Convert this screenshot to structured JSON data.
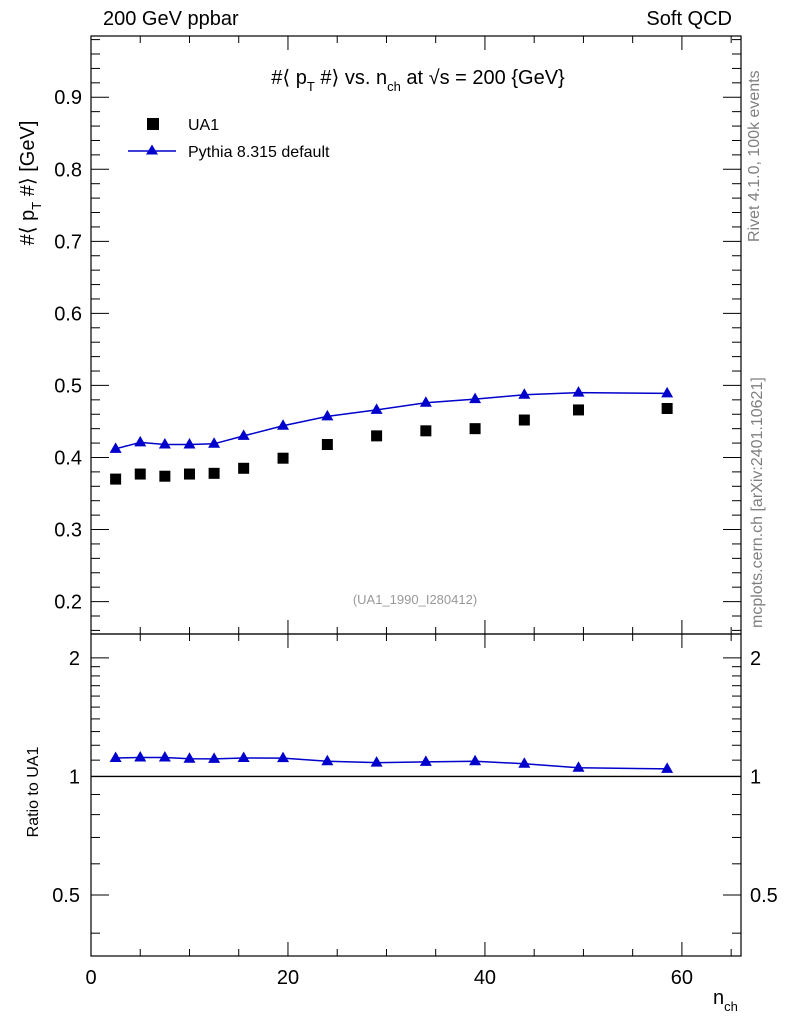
{
  "header": {
    "left": "200 GeV ppbar",
    "right": "Soft QCD"
  },
  "side_labels": {
    "rivet": "Rivet 4.1.0,  100k events",
    "mcplots": "mcplots.cern.ch [arXiv:2401.10621]"
  },
  "chart_data": {
    "type": "scatter",
    "title": "#⟨ p_T #⟩ vs. n_ch at √s = 200 {GeV}",
    "title_parts": {
      "pre": "#⟨ p",
      "sub1": "T",
      "mid": " #⟩ vs. n",
      "sub2": "ch",
      "post": " at √s = 200 {GeV}"
    },
    "ylabel_parts": {
      "pre": "#⟨ p",
      "sub": "T",
      "post": " #⟩ [GeV]"
    },
    "xlabel_parts": {
      "pre": "n",
      "sub": "ch"
    },
    "ratio_ylabel": "Ratio to UA1",
    "watermark": "(UA1_1990_I280412)",
    "xlim": [
      0,
      66
    ],
    "ylim": [
      0.155,
      0.985
    ],
    "ratio_ylim": [
      0.35,
      2.3
    ],
    "x_ticks": [
      "0",
      "20",
      "40",
      "60"
    ],
    "x_tick_values": [
      0,
      20,
      40,
      60
    ],
    "y_ticks": [
      "0.2",
      "0.3",
      "0.4",
      "0.5",
      "0.6",
      "0.7",
      "0.8",
      "0.9"
    ],
    "y_tick_values": [
      0.2,
      0.3,
      0.4,
      0.5,
      0.6,
      0.7,
      0.8,
      0.9
    ],
    "ratio_ticks": [
      "0.5",
      "1",
      "2"
    ],
    "ratio_tick_values": [
      0.5,
      1,
      2
    ],
    "legend": [
      {
        "name": "UA1",
        "marker": "square",
        "color": "#000000"
      },
      {
        "name": "Pythia 8.315 default",
        "marker": "triangle",
        "color": "#0000cc"
      }
    ],
    "series": [
      {
        "name": "UA1",
        "x": [
          2.5,
          5.0,
          7.5,
          10.0,
          12.5,
          15.5,
          19.5,
          24.0,
          29.0,
          34.0,
          39.0,
          44.0,
          49.5,
          58.5
        ],
        "y": [
          0.37,
          0.377,
          0.374,
          0.377,
          0.378,
          0.385,
          0.399,
          0.418,
          0.43,
          0.437,
          0.44,
          0.452,
          0.466,
          0.468
        ]
      },
      {
        "name": "Pythia 8.315 default",
        "x": [
          2.5,
          5.0,
          7.5,
          10.0,
          12.5,
          15.5,
          19.5,
          24.0,
          29.0,
          34.0,
          39.0,
          44.0,
          49.5,
          58.5
        ],
        "y": [
          0.412,
          0.421,
          0.418,
          0.418,
          0.419,
          0.43,
          0.444,
          0.457,
          0.466,
          0.476,
          0.481,
          0.487,
          0.49,
          0.489
        ]
      }
    ],
    "ratio": {
      "x": [
        2.5,
        5.0,
        7.5,
        10.0,
        12.5,
        15.5,
        19.5,
        24.0,
        29.0,
        34.0,
        39.0,
        44.0,
        49.5,
        58.5
      ],
      "y": [
        1.114,
        1.117,
        1.117,
        1.109,
        1.108,
        1.114,
        1.113,
        1.093,
        1.084,
        1.089,
        1.093,
        1.077,
        1.052,
        1.045
      ]
    }
  }
}
